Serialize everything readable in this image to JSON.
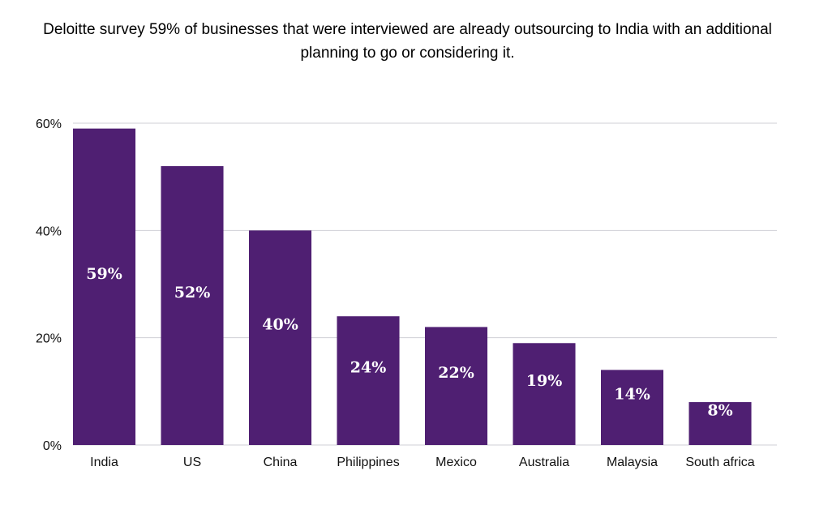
{
  "chart_data": {
    "type": "bar",
    "title": "Deloitte survey 59% of businesses that were interviewed are already outsourcing to India with an additional planning to go or considering it.",
    "categories": [
      "India",
      "US",
      "China",
      "Philippines",
      "Mexico",
      "Australia",
      "Malaysia",
      "South africa"
    ],
    "values": [
      59,
      52,
      40,
      24,
      22,
      19,
      14,
      8
    ],
    "data_labels": [
      "59%",
      "52%",
      "40%",
      "24%",
      "22%",
      "19%",
      "14%",
      "8%"
    ],
    "y_ticks": [
      0,
      20,
      40,
      60
    ],
    "y_tick_labels": [
      "0%",
      "20%",
      "40%",
      "60%"
    ],
    "ylim": [
      0,
      60
    ],
    "grid": true,
    "bar_color": "#4f1f72",
    "grid_color": "#cfcfd6"
  }
}
